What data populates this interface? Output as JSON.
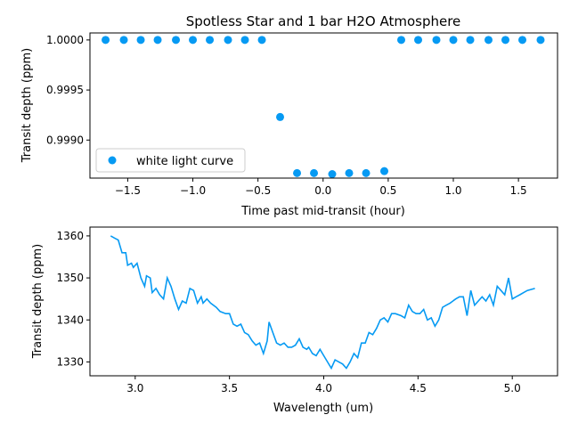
{
  "chart_data": [
    {
      "type": "scatter",
      "title": "Spotless Star and 1 bar H2O Atmosphere",
      "xlabel": "Time past mid-transit (hour)",
      "ylabel": "Transit depth (ppm)",
      "xlim": [
        -1.79,
        1.8
      ],
      "ylim": [
        0.99862,
        1.00007
      ],
      "xticks": [
        -1.5,
        -1.0,
        -0.5,
        0.0,
        0.5,
        1.0,
        1.5
      ],
      "xtick_labels": [
        "−1.5",
        "−1.0",
        "−0.5",
        "0.0",
        "0.5",
        "1.0",
        "1.5"
      ],
      "yticks": [
        0.999,
        0.9995,
        1.0
      ],
      "ytick_labels": [
        "0.9990",
        "0.9995",
        "1.0000"
      ],
      "legend": "lower-left",
      "color": "#069af3",
      "series": [
        {
          "name": "white light curve",
          "x": [
            -1.67,
            -1.53,
            -1.4,
            -1.27,
            -1.13,
            -1.0,
            -0.87,
            -0.73,
            -0.6,
            -0.47,
            -0.33,
            -0.2,
            -0.07,
            0.07,
            0.2,
            0.33,
            0.47,
            0.6,
            0.73,
            0.87,
            1.0,
            1.13,
            1.27,
            1.4,
            1.53,
            1.67
          ],
          "y": [
            1.0,
            1.0,
            1.0,
            1.0,
            1.0,
            1.0,
            1.0,
            1.0,
            1.0,
            1.0,
            0.99923,
            0.99867,
            0.99867,
            0.99866,
            0.99867,
            0.99867,
            0.99869,
            1.0,
            1.0,
            1.0,
            1.0,
            1.0,
            1.0,
            1.0,
            1.0,
            1.0
          ]
        }
      ]
    },
    {
      "type": "line",
      "xlabel": "Wavelength (um)",
      "ylabel": "Transit depth (ppm)",
      "xlim": [
        2.76,
        5.24
      ],
      "ylim": [
        1326.7,
        1362.1
      ],
      "xticks": [
        3.0,
        3.5,
        4.0,
        4.5,
        5.0
      ],
      "xtick_labels": [
        "3.0",
        "3.5",
        "4.0",
        "4.5",
        "5.0"
      ],
      "yticks": [
        1330,
        1340,
        1350,
        1360
      ],
      "ytick_labels": [
        "1330",
        "1340",
        "1350",
        "1360"
      ],
      "color": "#069af3",
      "series": [
        {
          "x": [
            2.87,
            2.89,
            2.91,
            2.93,
            2.95,
            2.96,
            2.98,
            2.99,
            3.01,
            3.03,
            3.05,
            3.06,
            3.08,
            3.09,
            3.11,
            3.13,
            3.15,
            3.17,
            3.19,
            3.21,
            3.23,
            3.25,
            3.27,
            3.29,
            3.31,
            3.33,
            3.35,
            3.36,
            3.38,
            3.4,
            3.43,
            3.45,
            3.48,
            3.5,
            3.52,
            3.54,
            3.56,
            3.58,
            3.6,
            3.62,
            3.64,
            3.66,
            3.68,
            3.7,
            3.71,
            3.73,
            3.75,
            3.77,
            3.79,
            3.81,
            3.83,
            3.85,
            3.87,
            3.89,
            3.91,
            3.92,
            3.94,
            3.96,
            3.98,
            4.0,
            4.02,
            4.04,
            4.06,
            4.08,
            4.1,
            4.12,
            4.14,
            4.16,
            4.18,
            4.2,
            4.22,
            4.24,
            4.26,
            4.28,
            4.3,
            4.32,
            4.34,
            4.36,
            4.38,
            4.41,
            4.43,
            4.45,
            4.47,
            4.49,
            4.51,
            4.53,
            4.55,
            4.57,
            4.59,
            4.61,
            4.63,
            4.65,
            4.67,
            4.7,
            4.72,
            4.74,
            4.76,
            4.78,
            4.8,
            4.82,
            4.84,
            4.86,
            4.88,
            4.9,
            4.92,
            4.94,
            4.96,
            4.98,
            5.0,
            5.02,
            5.04,
            5.06,
            5.08,
            5.12
          ],
          "y": [
            1360,
            1359.5,
            1359,
            1356,
            1356,
            1353,
            1353.5,
            1352.5,
            1353.5,
            1350,
            1348,
            1350.5,
            1350,
            1346.5,
            1347.5,
            1346,
            1345,
            1350,
            1348,
            1345,
            1342.5,
            1344.5,
            1344,
            1347.5,
            1347,
            1344,
            1345.5,
            1344,
            1345,
            1344,
            1343,
            1342,
            1341.5,
            1341.5,
            1339,
            1338.5,
            1339,
            1337,
            1336.5,
            1335,
            1334,
            1334.5,
            1332,
            1335,
            1339.5,
            1337,
            1334.5,
            1334,
            1334.5,
            1333.5,
            1333.5,
            1334,
            1335.5,
            1333.5,
            1333,
            1333.5,
            1332,
            1331.5,
            1333,
            1331.5,
            1330,
            1328.5,
            1330.5,
            1330,
            1329.5,
            1328.5,
            1330,
            1332,
            1331,
            1334.5,
            1334.5,
            1337,
            1336.5,
            1338,
            1340,
            1340.5,
            1339.5,
            1341.5,
            1341.5,
            1341,
            1340.5,
            1343.5,
            1342,
            1341.5,
            1341.5,
            1342.5,
            1340,
            1340.5,
            1338.5,
            1340,
            1343,
            1343.5,
            1344,
            1345,
            1345.5,
            1345.5,
            1341,
            1347,
            1343.5,
            1344.5,
            1345.5,
            1344.5,
            1346,
            1343.5,
            1348,
            1347,
            1346,
            1350,
            1345,
            1345.5,
            1346,
            1346.5,
            1347,
            1347.5
          ]
        }
      ]
    }
  ]
}
